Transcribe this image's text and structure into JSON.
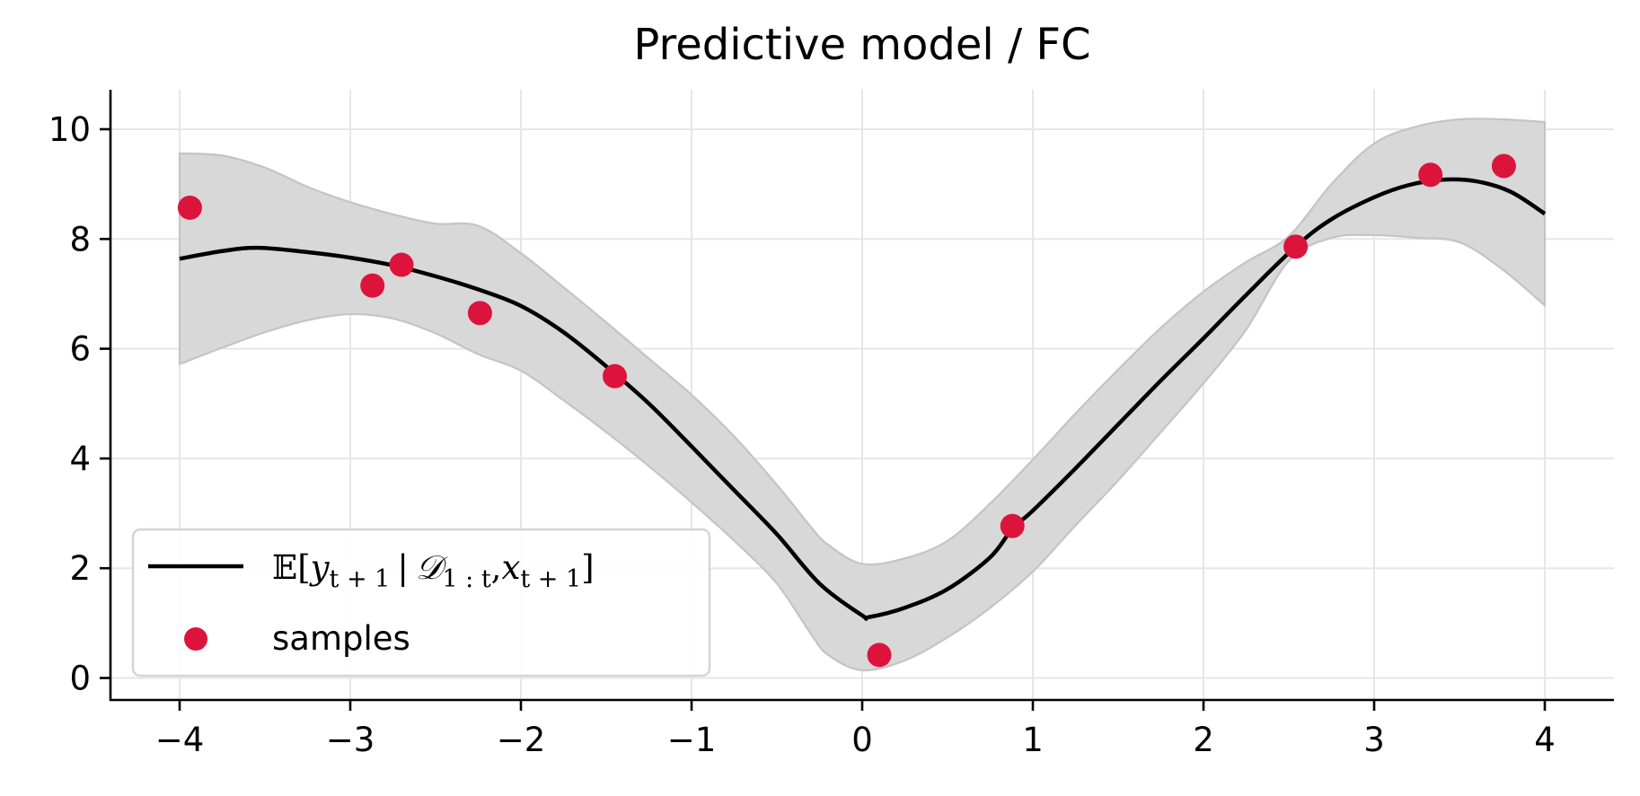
{
  "chart_data": {
    "type": "line",
    "title": "Predictive model / FC",
    "xlabel": "",
    "ylabel": "",
    "xlim": [
      -4.4,
      4.4
    ],
    "ylim": [
      -0.4,
      10.72
    ],
    "xticks": [
      -4,
      -3,
      -2,
      -1,
      0,
      1,
      2,
      3,
      4
    ],
    "xtick_labels": [
      "−4",
      "−3",
      "−2",
      "−1",
      "0",
      "1",
      "2",
      "3",
      "4"
    ],
    "yticks": [
      0,
      2,
      4,
      6,
      8,
      10
    ],
    "ytick_labels": [
      "0",
      "2",
      "4",
      "6",
      "8",
      "10"
    ],
    "grid": true,
    "legend_position": "lower left",
    "series": [
      {
        "name": "E[y_{t+1} | D_{1:t}, x_{t+1}]",
        "kind": "line",
        "color": "#000000",
        "x": [
          -4.0,
          -3.75,
          -3.54,
          -3.25,
          -3.0,
          -2.75,
          -2.5,
          -2.25,
          -2.0,
          -1.75,
          -1.5,
          -1.25,
          -1.0,
          -0.75,
          -0.5,
          -0.25,
          0.0,
          0.04,
          0.25,
          0.5,
          0.75,
          0.88,
          1.0,
          1.25,
          1.5,
          1.75,
          2.0,
          2.25,
          2.54,
          2.75,
          3.0,
          3.2,
          3.4,
          3.6,
          3.8,
          4.0
        ],
        "y": [
          7.64,
          7.78,
          7.84,
          7.76,
          7.66,
          7.52,
          7.32,
          7.08,
          6.78,
          6.3,
          5.68,
          5.0,
          4.22,
          3.42,
          2.62,
          1.72,
          1.14,
          1.11,
          1.28,
          1.62,
          2.2,
          2.72,
          3.05,
          3.82,
          4.62,
          5.42,
          6.19,
          6.98,
          7.86,
          8.36,
          8.76,
          8.98,
          9.08,
          9.05,
          8.86,
          8.46
        ]
      },
      {
        "name": "uncertainty band",
        "kind": "fill_between",
        "color": "#d8d8d8",
        "edge_color": "#c4c4c4",
        "x": [
          -4.0,
          -3.75,
          -3.5,
          -3.25,
          -3.0,
          -2.75,
          -2.5,
          -2.25,
          -2.0,
          -1.75,
          -1.5,
          -1.25,
          -1.0,
          -0.75,
          -0.5,
          -0.3,
          -0.2,
          0.0,
          0.25,
          0.5,
          0.75,
          1.0,
          1.25,
          1.5,
          1.75,
          2.0,
          2.25,
          2.5,
          2.75,
          3.0,
          3.25,
          3.5,
          3.75,
          4.0
        ],
        "upper": [
          9.56,
          9.52,
          9.3,
          8.95,
          8.67,
          8.45,
          8.28,
          8.24,
          7.74,
          7.12,
          6.48,
          5.82,
          5.16,
          4.4,
          3.52,
          2.75,
          2.43,
          2.08,
          2.18,
          2.5,
          3.18,
          3.98,
          4.82,
          5.62,
          6.38,
          7.04,
          7.58,
          8.05,
          9.0,
          9.74,
          10.05,
          10.18,
          10.18,
          10.13
        ],
        "lower": [
          5.72,
          6.02,
          6.3,
          6.52,
          6.63,
          6.55,
          6.28,
          5.9,
          5.6,
          5.06,
          4.48,
          3.86,
          3.2,
          2.5,
          1.72,
          0.8,
          0.42,
          0.14,
          0.32,
          0.74,
          1.28,
          1.94,
          2.78,
          3.6,
          4.48,
          5.37,
          6.35,
          7.6,
          8.02,
          8.07,
          8.02,
          7.94,
          7.45,
          6.79
        ]
      },
      {
        "name": "samples",
        "kind": "scatter",
        "color": "#dc143c",
        "x": [
          -3.94,
          -2.87,
          -2.7,
          -2.24,
          -1.45,
          0.1,
          0.88,
          2.54,
          3.33,
          3.76
        ],
        "y": [
          8.57,
          7.15,
          7.53,
          6.65,
          5.5,
          0.42,
          2.77,
          7.86,
          9.17,
          9.33
        ]
      }
    ],
    "legend": [
      {
        "label": "E[y_{t+1} | D_{1:t}, x_{t+1}]",
        "marker": "line",
        "color": "#000000"
      },
      {
        "label": "samples",
        "marker": "dot",
        "color": "#dc143c"
      }
    ]
  },
  "legend_labels": {
    "mean": {
      "E": "𝔼",
      "open": "[",
      "y": "y",
      "y_sub": "t + 1",
      "bar": "|",
      "D": "𝒟",
      "D_sub": "1 : t",
      "comma": ",",
      "x": "x",
      "x_sub": "t + 1",
      "close": "]"
    },
    "samples": "samples"
  },
  "colors": {
    "mean_line": "#000000",
    "band_fill": "#d8d8d8",
    "band_edge": "#c4c4c4",
    "samples": "#dc143c",
    "grid": "#e6e6e6",
    "axis": "#000000",
    "legend_border": "#d5d5d5"
  }
}
